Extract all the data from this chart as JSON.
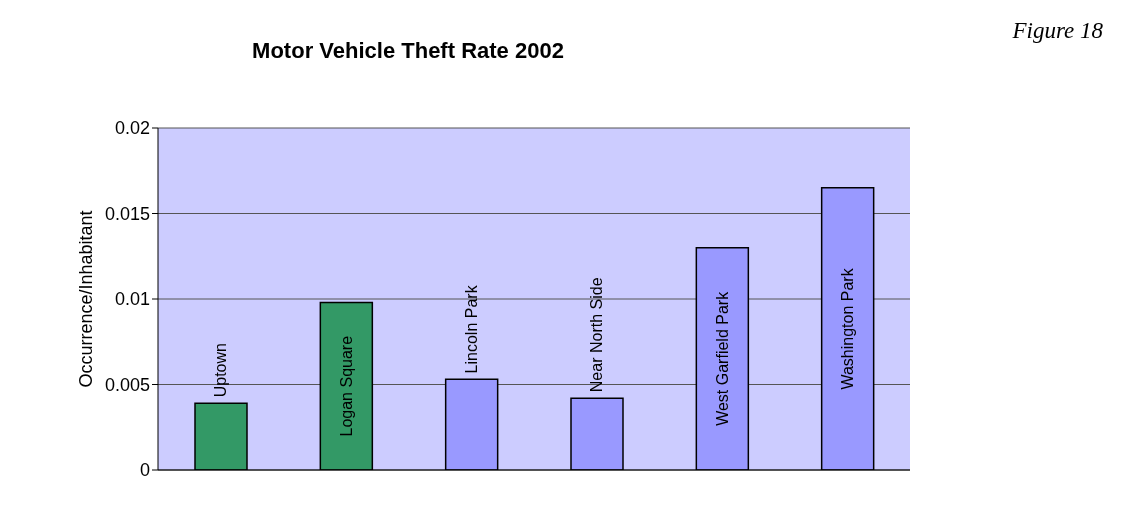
{
  "chart_data": {
    "type": "bar",
    "title": "Motor Vehicle Theft Rate 2002",
    "ylabel": "Occurrence/Inhabitant",
    "annotations": [
      "Figure 18"
    ],
    "categories": [
      "Uptown",
      "Logan Square",
      "Lincoln Park",
      "Near North Side",
      "West Garfield Park",
      "Washington Park"
    ],
    "values": [
      0.0039,
      0.0098,
      0.0053,
      0.0042,
      0.013,
      0.0165
    ],
    "colors": [
      "#339966",
      "#339966",
      "#9999ff",
      "#9999ff",
      "#9999ff",
      "#9999ff"
    ],
    "ylim": [
      0,
      0.02
    ],
    "yticks": [
      0,
      0.005,
      0.01,
      0.015,
      0.02
    ],
    "grid": "y",
    "legend": false
  }
}
